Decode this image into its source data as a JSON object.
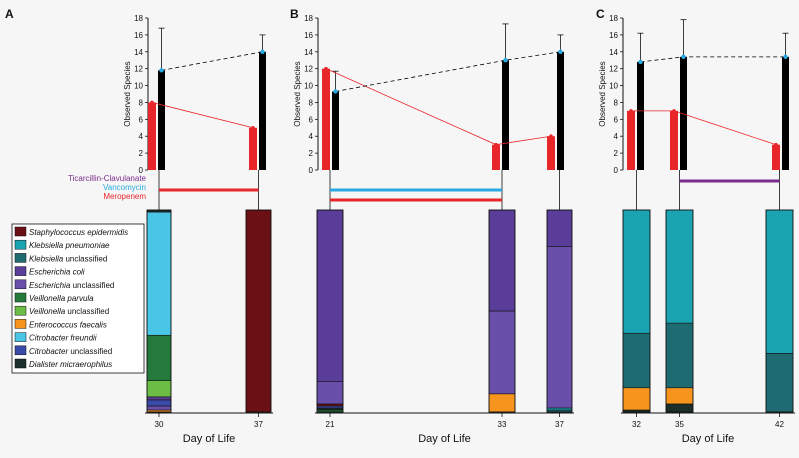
{
  "figure": {
    "background": "#f6f6f6",
    "ylabel": "Observed Species",
    "xlabel": "Day of Life"
  },
  "colors": {
    "red_bar": "#e8262a",
    "black_bar": "#000000",
    "red_line": "#e8262a",
    "dash_line": "#000000",
    "marker": "#27aae1"
  },
  "chart_data": [
    {
      "type": "bar",
      "panel": "A",
      "ylabel": "Observed Species",
      "xlabel": "Day of Life",
      "ylim": [
        0,
        18
      ],
      "yticks": [
        0,
        2,
        4,
        6,
        8,
        10,
        12,
        14,
        16,
        18
      ],
      "categories": [
        "30",
        "37"
      ],
      "series": [
        {
          "values": [
            8,
            5
          ],
          "color": "#e8262a"
        },
        {
          "values": [
            11.8,
            14
          ],
          "error": [
            5,
            2
          ],
          "color": "#000000"
        }
      ],
      "antibiotics": [
        {
          "name": "Meropenem",
          "color": "#e8262a",
          "from": "30",
          "to": "37"
        }
      ],
      "composition": [
        {
          "day": "30",
          "segments": [
            {
              "taxon": "Enterococcus faecalis",
              "value": 0.01
            },
            {
              "taxon": "Escherichia unclassified",
              "value": 0.02
            },
            {
              "taxon": "Citrobacter unclassified",
              "value": 0.03
            },
            {
              "taxon": "Escherichia coli",
              "value": 0.015
            },
            {
              "taxon": "Veillonella unclassified",
              "value": 0.08
            },
            {
              "taxon": "Veillonella parvula",
              "value": 0.225
            },
            {
              "taxon": "Citrobacter freundii",
              "value": 0.61
            },
            {
              "taxon": "Dialister micraerophilus",
              "value": 0.01
            }
          ]
        },
        {
          "day": "37",
          "segments": [
            {
              "taxon": "Staphylococcus epidermidis",
              "value": 1.0
            }
          ]
        }
      ]
    },
    {
      "type": "bar",
      "panel": "B",
      "ylabel": "Observed Species",
      "xlabel": "Day of Life",
      "ylim": [
        0,
        18
      ],
      "yticks": [
        0,
        2,
        4,
        6,
        8,
        10,
        12,
        14,
        16,
        18
      ],
      "categories": [
        "21",
        "33",
        "37"
      ],
      "series": [
        {
          "values": [
            12,
            3,
            4
          ],
          "color": "#e8262a"
        },
        {
          "values": [
            9.3,
            13,
            14
          ],
          "error": [
            2.4,
            4.3,
            2
          ],
          "color": "#000000"
        }
      ],
      "antibiotics": [
        {
          "name": "Vancomycin",
          "color": "#27aae1",
          "from": "21",
          "to": "33"
        },
        {
          "name": "Meropenem",
          "color": "#e8262a",
          "from": "21",
          "to": "33"
        }
      ],
      "composition": [
        {
          "day": "21",
          "segments": [
            {
              "taxon": "Veillonella parvula",
              "value": 0.01
            },
            {
              "taxon": "Dialister micraerophilus",
              "value": 0.01
            },
            {
              "taxon": "Citrobacter unclassified",
              "value": 0.01
            },
            {
              "taxon": "Staphylococcus epidermidis",
              "value": 0.01
            },
            {
              "taxon": "Escherichia unclassified",
              "value": 0.11
            },
            {
              "taxon": "Escherichia coli",
              "value": 0.85
            }
          ]
        },
        {
          "day": "33",
          "segments": [
            {
              "taxon": "Enterococcus faecalis",
              "value": 0.09
            },
            {
              "taxon": "Escherichia unclassified",
              "value": 0.41
            },
            {
              "taxon": "Escherichia coli",
              "value": 0.5
            }
          ]
        },
        {
          "day": "37",
          "segments": [
            {
              "taxon": "Klebsiella unclassified",
              "value": 0.01
            },
            {
              "taxon": "Klebsiella pneumoniae",
              "value": 0.01
            },
            {
              "taxon": "Escherichia unclassified",
              "value": 0.8
            },
            {
              "taxon": "Escherichia coli",
              "value": 0.18
            }
          ]
        }
      ]
    },
    {
      "type": "bar",
      "panel": "C",
      "ylabel": "Observed Species",
      "xlabel": "Day of Life",
      "ylim": [
        0,
        18
      ],
      "yticks": [
        0,
        2,
        4,
        6,
        8,
        10,
        12,
        14,
        16,
        18
      ],
      "categories": [
        "32",
        "35",
        "42"
      ],
      "series": [
        {
          "values": [
            7,
            7,
            3
          ],
          "color": "#e8262a"
        },
        {
          "values": [
            12.8,
            13.4,
            13.4
          ],
          "error": [
            3.4,
            4.4,
            2.8
          ],
          "color": "#000000"
        }
      ],
      "antibiotics": [
        {
          "name": "Ticarcillin-Clavulanate",
          "color": "#7b2d8e",
          "from": "35",
          "to": "42"
        }
      ],
      "composition": [
        {
          "day": "32",
          "segments": [
            {
              "taxon": "Dialister micraerophilus",
              "value": 0.01
            },
            {
              "taxon": "Enterococcus faecalis",
              "value": 0.11
            },
            {
              "taxon": "Klebsiella unclassified",
              "value": 0.27
            },
            {
              "taxon": "Klebsiella pneumoniae",
              "value": 0.61
            }
          ]
        },
        {
          "day": "35",
          "segments": [
            {
              "taxon": "Dialister micraerophilus",
              "value": 0.04
            },
            {
              "taxon": "Enterococcus faecalis",
              "value": 0.08
            },
            {
              "taxon": "Klebsiella unclassified",
              "value": 0.32
            },
            {
              "taxon": "Klebsiella pneumoniae",
              "value": 0.56
            }
          ]
        },
        {
          "day": "42",
          "segments": [
            {
              "taxon": "Klebsiella unclassified",
              "value": 0.29
            },
            {
              "taxon": "Klebsiella pneumoniae",
              "value": 0.71
            }
          ]
        }
      ]
    }
  ],
  "legend": [
    {
      "genus": "Staphylococcus",
      "rest": " epidermidis",
      "label": "Staphylococcus epidermidis",
      "italic": true,
      "color": "#6b1015"
    },
    {
      "genus": "Klebsiella",
      "rest": " pneumoniae",
      "label": "Klebsiella pneumoniae",
      "italic": true,
      "color": "#1aa3b1"
    },
    {
      "genus": "Klebsiella",
      "rest": " unclassified",
      "label": "Klebsiella unclassified",
      "italic": false,
      "color": "#1f6b72"
    },
    {
      "genus": "Escherichia",
      "rest": " coli",
      "label": "Escherichia coli",
      "italic": true,
      "color": "#5a3d99"
    },
    {
      "genus": "Escherichia",
      "rest": " unclassified",
      "label": "Escherichia unclassified",
      "italic": false,
      "color": "#6a4faa"
    },
    {
      "genus": "Veillonella",
      "rest": " parvula",
      "label": "Veillonella parvula",
      "italic": true,
      "color": "#247a3b"
    },
    {
      "genus": "Veillonella",
      "rest": " unclassified",
      "label": "Veillonella unclassified",
      "italic": false,
      "color": "#6cbd45"
    },
    {
      "genus": "Enterococcus",
      "rest": " faecalis",
      "label": "Enterococcus faecalis",
      "italic": true,
      "color": "#f7941d"
    },
    {
      "genus": "Citrobacter",
      "rest": " freundii",
      "label": "Citrobacter freundii",
      "italic": true,
      "color": "#49c6e5"
    },
    {
      "genus": "Citrobacter",
      "rest": " unclassified",
      "label": "Citrobacter unclassified",
      "italic": false,
      "color": "#3a4aa8"
    },
    {
      "genus": "Dialister",
      "rest": " micraerophilus",
      "label": "Dialister micraerophilus",
      "italic": true,
      "color": "#1c2e2a"
    }
  ]
}
